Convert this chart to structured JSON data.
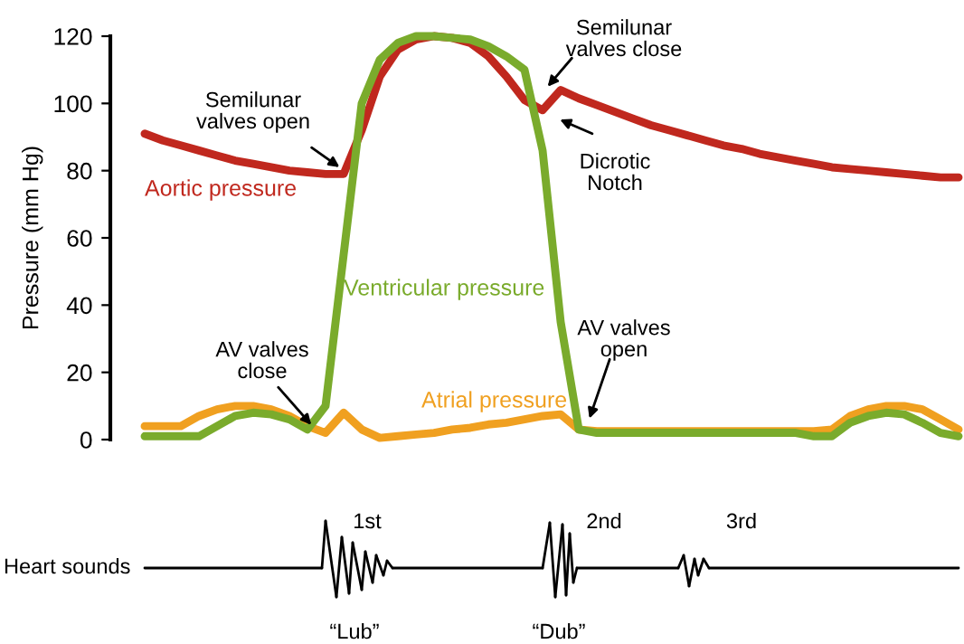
{
  "chart_data": {
    "type": "line",
    "ylabel": "Pressure (mm Hg)",
    "categories": [
      null,
      null,
      null,
      null,
      null,
      null,
      null,
      null,
      null,
      null,
      null,
      null,
      null,
      null,
      null,
      null,
      null,
      null,
      null,
      null,
      null,
      null,
      null,
      null,
      null,
      null,
      null,
      null,
      null,
      null,
      null,
      null,
      null,
      null,
      null,
      null,
      null,
      null,
      null,
      null,
      null,
      null,
      null,
      null,
      null,
      null
    ],
    "ylim": [
      0,
      120
    ],
    "yticks": [
      0,
      20,
      40,
      60,
      80,
      100,
      120
    ],
    "grid": false,
    "legend": false,
    "tick_labels": "y",
    "series": [
      {
        "name": "Aortic pressure",
        "color": "#c0281e",
        "values": [
          91,
          89,
          87.5,
          86,
          84.5,
          83,
          82,
          81,
          80,
          79.5,
          79,
          79,
          92,
          108,
          116,
          119,
          120,
          119.5,
          118,
          114,
          108,
          101,
          98,
          104,
          101.5,
          99.5,
          97.5,
          95.5,
          93.5,
          92,
          90.5,
          89,
          87.5,
          86.5,
          85,
          84,
          83,
          82,
          81,
          80.5,
          80,
          79.5,
          79,
          78.5,
          78,
          78
        ]
      },
      {
        "name": "Ventricular pressure",
        "color": "#7aab2c",
        "values": [
          1,
          1,
          1,
          1,
          4,
          7,
          8,
          7.5,
          6,
          3,
          10,
          55,
          100,
          113,
          118,
          120,
          120,
          119.5,
          119,
          117,
          114,
          110,
          86,
          35,
          3,
          2,
          2,
          2,
          2,
          2,
          2,
          2,
          2,
          2,
          2,
          2,
          2,
          1,
          1,
          5,
          7,
          8,
          7.5,
          5,
          2,
          1
        ]
      },
      {
        "name": "Atrial pressure",
        "color": "#f0a020",
        "values": [
          4,
          4,
          4,
          7,
          9,
          10,
          10,
          9,
          7,
          4,
          2,
          8,
          3,
          0.5,
          1,
          1.5,
          2,
          3,
          3.5,
          4.5,
          5,
          6,
          7,
          7.5,
          3,
          2.5,
          2.5,
          2.5,
          2.5,
          2.5,
          2.5,
          2.5,
          2.5,
          2.5,
          2.5,
          2.5,
          2.5,
          2.5,
          3,
          7,
          9,
          10,
          10,
          9,
          6,
          3
        ]
      }
    ],
    "annotations": [
      "Semilunar\nvalves open",
      "Semilunar\nvalves close",
      "Dicrotic\nNotch",
      "AV valves\nclose",
      "AV valves\nopen",
      "Heart sounds",
      "1st",
      "2nd",
      "3rd",
      "“Lub”",
      "“Dub”"
    ]
  }
}
